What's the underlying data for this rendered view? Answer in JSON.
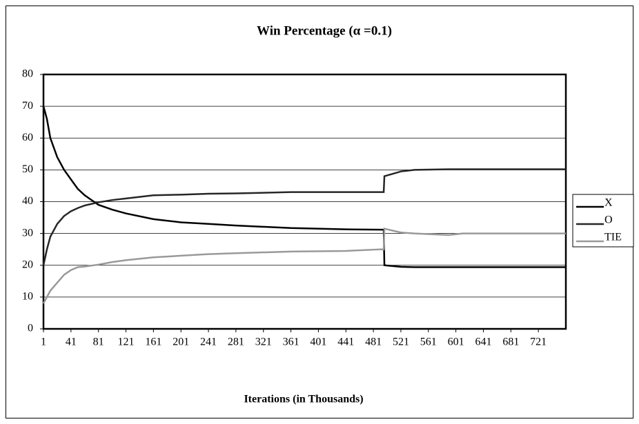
{
  "chart_data": {
    "type": "line",
    "title": "Win Percentage (α =0.1)",
    "x_label": "Iterations (in Thousands)",
    "x": [
      1,
      6,
      11,
      21,
      31,
      41,
      51,
      61,
      81,
      101,
      121,
      161,
      201,
      241,
      281,
      361,
      441,
      491,
      496,
      497,
      521,
      541,
      591,
      611,
      761
    ],
    "series": [
      {
        "name": "X",
        "color": "#000000",
        "values": [
          70,
          66,
          60,
          54,
          50,
          47,
          44,
          42,
          39,
          37.5,
          36.3,
          34.5,
          33.5,
          33,
          32.5,
          31.7,
          31.3,
          31.2,
          31.2,
          20,
          19.5,
          19.4,
          19.4,
          19.4,
          19.4
        ]
      },
      {
        "name": "O",
        "color": "#262626",
        "values": [
          20,
          25,
          29,
          33,
          35.5,
          37,
          38,
          38.8,
          39.8,
          40.5,
          41,
          42,
          42.2,
          42.5,
          42.6,
          43,
          43,
          43,
          43,
          48,
          49.5,
          50,
          50.2,
          50.2,
          50.2
        ]
      },
      {
        "name": "TIE",
        "color": "#999999",
        "values": [
          8,
          10,
          12,
          14.5,
          17,
          18.5,
          19.4,
          19.6,
          20.2,
          21,
          21.6,
          22.5,
          23,
          23.5,
          23.8,
          24.3,
          24.5,
          25,
          25,
          31.5,
          30.3,
          30,
          29.5,
          30,
          30
        ]
      }
    ],
    "xlim": [
      1,
      761
    ],
    "xticks": [
      1,
      41,
      81,
      121,
      161,
      201,
      241,
      281,
      321,
      361,
      401,
      441,
      481,
      521,
      561,
      601,
      641,
      681,
      721
    ],
    "ylim": [
      0,
      80
    ],
    "yticks": [
      0,
      10,
      20,
      30,
      40,
      50,
      60,
      70,
      80
    ],
    "grid": true,
    "legend": "right"
  }
}
